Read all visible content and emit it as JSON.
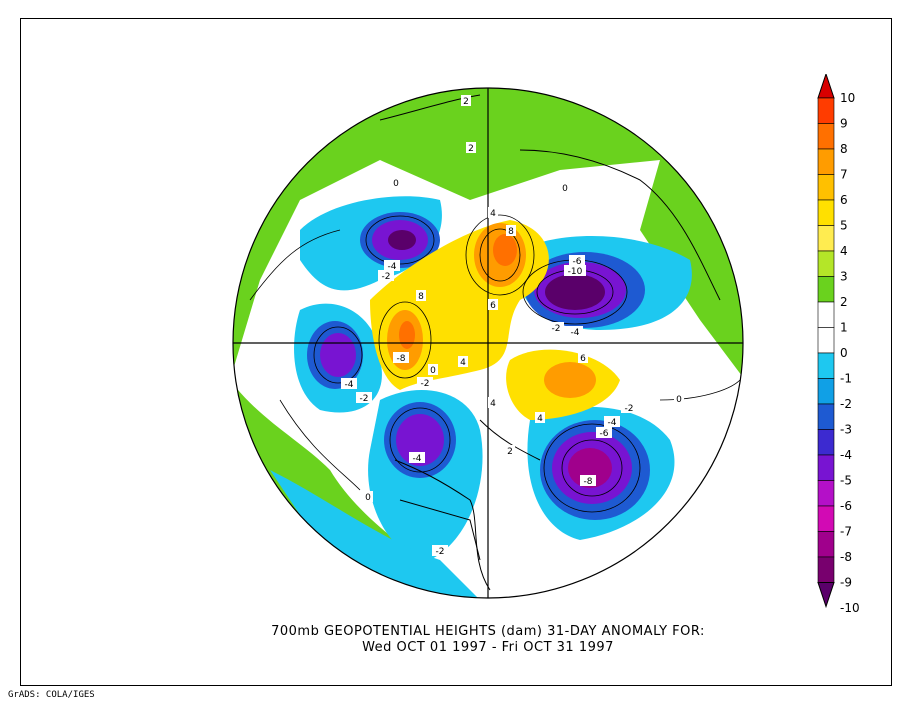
{
  "title": {
    "line1": "700mb GEOPOTENTIAL HEIGHTS (dam)    31-DAY ANOMALY FOR:",
    "line2": "Wed OCT 01 1997 - Fri OCT 31 1997"
  },
  "footer": "GrADS: COLA/IGES",
  "colorbar": {
    "levels": [
      "10",
      "9",
      "8",
      "7",
      "6",
      "5",
      "4",
      "3",
      "2",
      "1",
      "0",
      "-1",
      "-2",
      "-3",
      "-4",
      "-5",
      "-6",
      "-7",
      "-8",
      "-9",
      "-10"
    ],
    "colors": [
      "#d80000",
      "#ff3c00",
      "#ff7000",
      "#ff9c00",
      "#ffc000",
      "#ffe000",
      "#ffec50",
      "#b4e628",
      "#6ad21e",
      "#ffffff",
      "#ffffff",
      "#1ec8f0",
      "#10a0e6",
      "#1e5ad2",
      "#3c2ad0",
      "#7814d2",
      "#b410c8",
      "#d20ab4",
      "#a0008c",
      "#78006e",
      "#5a006a"
    ]
  },
  "contour_labels": [
    "2",
    "2",
    "0",
    "4",
    "8",
    "-6",
    "-10",
    "-4",
    "-2",
    "-4",
    "8",
    "6",
    "4",
    "-4",
    "-2",
    "-8",
    "0",
    "-2",
    "4",
    "-2",
    "-4",
    "-6",
    "-8",
    "-4",
    "2",
    "-2",
    "0",
    "6",
    "4",
    "0",
    "0",
    "-4",
    "-2"
  ],
  "map": {
    "projection": "polar stereographic",
    "colors": {
      "ocean_light": "#1ec8f0",
      "green": "#6ad21e",
      "yellow": "#ffe000",
      "orange": "#ff9c00",
      "purple": "#7814d2",
      "dark_purple": "#5a006a"
    }
  }
}
